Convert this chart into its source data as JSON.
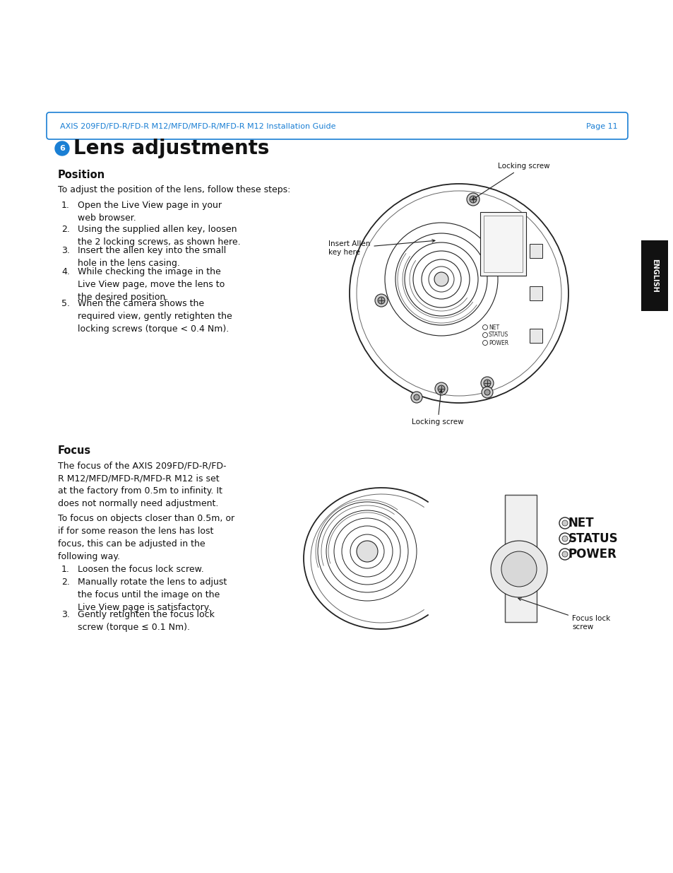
{
  "page_bg": "#ffffff",
  "header_text": "AXIS 209FD/FD-R/FD-R M12/MFD/MFD-R/MFD-R M12 Installation Guide",
  "header_page": "Page 11",
  "header_color": "#1a7fd4",
  "header_border_color": "#1a7fd4",
  "badge_color": "#1a7fd4",
  "badge_number": "6",
  "title": "Lens adjustments",
  "title_fontsize": 20,
  "section1_heading": "Position",
  "section1_intro": "To adjust the position of the lens, follow these steps:",
  "section1_steps": [
    "Open the Live View page in your\nweb browser.",
    "Using the supplied allen key, loosen\nthe 2 locking screws, as shown here.",
    "Insert the allen key into the small\nhole in the lens casing.",
    "While checking the image in the\nLive View page, move the lens to\nthe desired position.",
    "When the camera shows the\nrequired view, gently retighten the\nlocking screws (torque < 0.4 Nm)."
  ],
  "section2_heading": "Focus",
  "section2_para1": "The focus of the AXIS 209FD/FD-R/FD-\nR M12/MFD/MFD-R/MFD-R M12 is set\nat the factory from 0.5m to infinity. It\ndoes not normally need adjustment.",
  "section2_para2": "To focus on objects closer than 0.5m, or\nif for some reason the lens has lost\nfocus, this can be adjusted in the\nfollowing way.",
  "section2_steps": [
    "Loosen the focus lock screw.",
    "Manually rotate the lens to adjust\nthe focus until the image on the\nLive View page is satisfactory.",
    "Gently retighten the focus lock\nscrew (torque ≤ 0.1 Nm)."
  ],
  "sidebar_text": "ENGLISH",
  "sidebar_bg": "#111111",
  "sidebar_text_color": "#ffffff",
  "line_color": "#222222",
  "light_line": "#666666",
  "bg_diagram": "#f0f0f0"
}
